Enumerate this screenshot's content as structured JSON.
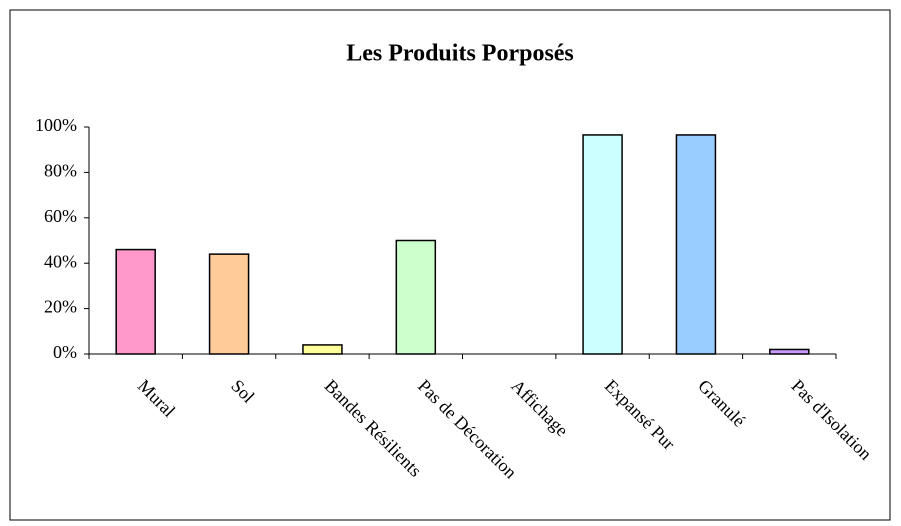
{
  "chart_data": {
    "type": "bar",
    "title": "Les Produits Porposés",
    "categories": [
      "Mural",
      "Sol",
      "Bandes Résilients",
      "Pas de Décoration",
      "Affichage",
      "Expansé Pur",
      "Granulé",
      "Pas d'Isolation"
    ],
    "values": [
      46,
      44,
      4,
      50,
      0,
      96.5,
      96.5,
      2
    ],
    "colors": [
      "#ff99cc",
      "#ffcc99",
      "#ffff99",
      "#ccffcc",
      "#ff8080",
      "#ccffff",
      "#99ccff",
      "#cc99ff"
    ],
    "ylim": [
      0,
      100
    ],
    "yticks": [
      {
        "value": 0,
        "label": "0%"
      },
      {
        "value": 20,
        "label": "20%"
      },
      {
        "value": 40,
        "label": "40%"
      },
      {
        "value": 60,
        "label": "60%"
      },
      {
        "value": 80,
        "label": "80%"
      },
      {
        "value": 100,
        "label": "100%"
      }
    ],
    "grid": false
  }
}
